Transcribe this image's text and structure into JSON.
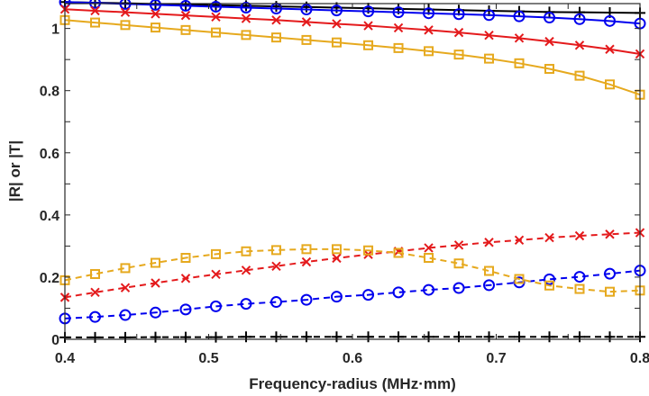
{
  "chart_data": {
    "type": "line",
    "title": "",
    "xlabel": "Frequency-radius (MHz·mm)",
    "ylabel": "|R| or |T|",
    "xlim": [
      0.4,
      0.8
    ],
    "ylim": [
      0,
      1.08
    ],
    "xticks": [
      "0.4",
      "0.5",
      "0.6",
      "0.7",
      "0.8"
    ],
    "yticks": [
      "0",
      "0.2",
      "0.4",
      "0.6",
      "0.8",
      "1"
    ],
    "grid": false,
    "legend": "none",
    "x": [
      0.4,
      0.421,
      0.442,
      0.463,
      0.484,
      0.505,
      0.526,
      0.547,
      0.568,
      0.589,
      0.611,
      0.632,
      0.653,
      0.674,
      0.695,
      0.716,
      0.737,
      0.758,
      0.779,
      0.8
    ],
    "series": [
      {
        "color": "#000000",
        "marker": "plus",
        "dash": false,
        "values": [
          1.085,
          1.083,
          1.081,
          1.079,
          1.077,
          1.075,
          1.073,
          1.071,
          1.069,
          1.067,
          1.065,
          1.063,
          1.061,
          1.059,
          1.057,
          1.055,
          1.053,
          1.052,
          1.051,
          1.05
        ]
      },
      {
        "color": "#0000ee",
        "marker": "circle",
        "dash": false,
        "values": [
          1.085,
          1.082,
          1.079,
          1.076,
          1.073,
          1.07,
          1.067,
          1.064,
          1.061,
          1.058,
          1.055,
          1.052,
          1.049,
          1.046,
          1.043,
          1.039,
          1.035,
          1.03,
          1.024,
          1.016
        ]
      },
      {
        "color": "#e41a1c",
        "marker": "cross",
        "dash": false,
        "values": [
          1.062,
          1.057,
          1.052,
          1.047,
          1.042,
          1.037,
          1.032,
          1.027,
          1.021,
          1.015,
          1.009,
          1.002,
          0.995,
          0.987,
          0.978,
          0.969,
          0.958,
          0.946,
          0.933,
          0.918
        ]
      },
      {
        "color": "#e6a91e",
        "marker": "square",
        "dash": false,
        "values": [
          1.027,
          1.019,
          1.011,
          1.003,
          0.995,
          0.987,
          0.979,
          0.971,
          0.963,
          0.955,
          0.946,
          0.937,
          0.927,
          0.916,
          0.903,
          0.888,
          0.87,
          0.848,
          0.82,
          0.787
        ]
      },
      {
        "color": "#000000",
        "marker": "plus",
        "dash": true,
        "values": [
          0.006,
          0.006,
          0.006,
          0.007,
          0.007,
          0.007,
          0.008,
          0.008,
          0.008,
          0.008,
          0.008,
          0.008,
          0.008,
          0.008,
          0.008,
          0.008,
          0.008,
          0.008,
          0.008,
          0.008
        ]
      },
      {
        "color": "#0000ee",
        "marker": "circle",
        "dash": true,
        "values": [
          0.067,
          0.072,
          0.078,
          0.086,
          0.096,
          0.106,
          0.114,
          0.12,
          0.127,
          0.137,
          0.143,
          0.151,
          0.159,
          0.165,
          0.174,
          0.183,
          0.193,
          0.201,
          0.211,
          0.221
        ]
      },
      {
        "color": "#e41a1c",
        "marker": "cross",
        "dash": true,
        "values": [
          0.135,
          0.151,
          0.166,
          0.181,
          0.196,
          0.209,
          0.222,
          0.235,
          0.249,
          0.261,
          0.273,
          0.283,
          0.294,
          0.303,
          0.312,
          0.319,
          0.327,
          0.333,
          0.338,
          0.343
        ]
      },
      {
        "color": "#e6a91e",
        "marker": "square",
        "dash": true,
        "values": [
          0.19,
          0.21,
          0.229,
          0.246,
          0.262,
          0.274,
          0.283,
          0.287,
          0.29,
          0.29,
          0.286,
          0.278,
          0.262,
          0.244,
          0.22,
          0.194,
          0.173,
          0.162,
          0.153,
          0.157
        ]
      }
    ]
  }
}
